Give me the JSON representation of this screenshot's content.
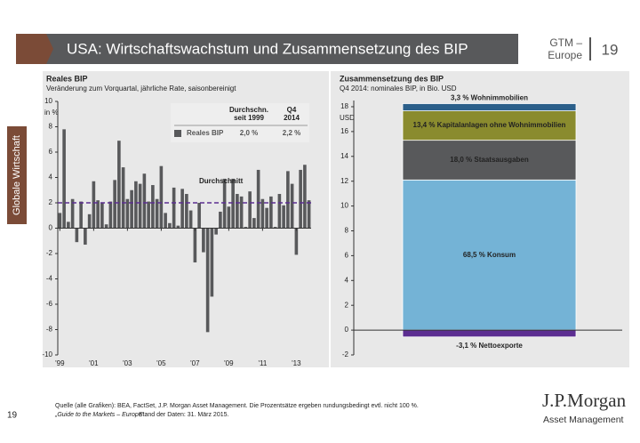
{
  "header": {
    "title": "USA: Wirtschaftswachstum und Zusammensetzung des BIP",
    "tag_line1": "GTM –",
    "tag_line2": "Europe",
    "page": "19"
  },
  "side_tab": "Globale Wirtschaft",
  "chart_data": [
    {
      "type": "bar",
      "title": "Reales BIP",
      "subtitle": "Veränderung zum Vorquartal, jährliche Rate, saisonbereinigt",
      "y_label": "in %",
      "categories": [
        "'99",
        null,
        null,
        null,
        null,
        null,
        null,
        null,
        "'01",
        null,
        null,
        null,
        null,
        null,
        null,
        null,
        "'03",
        null,
        null,
        null,
        null,
        null,
        null,
        null,
        "'05",
        null,
        null,
        null,
        null,
        null,
        null,
        null,
        "'07",
        null,
        null,
        null,
        null,
        null,
        null,
        null,
        "'09",
        null,
        null,
        null,
        null,
        null,
        null,
        null,
        "'11",
        null,
        null,
        null,
        null,
        null,
        null,
        null,
        "'13",
        null,
        null,
        null
      ],
      "series": [
        {
          "name": "Reales BIP",
          "color": "#58595b",
          "values": [
            1.2,
            7.8,
            0.5,
            2.3,
            -1.1,
            2.1,
            -1.3,
            1.1,
            3.7,
            2.2,
            2.0,
            0.3,
            2.1,
            3.8,
            6.9,
            4.8,
            2.3,
            3.0,
            3.7,
            3.5,
            4.3,
            2.1,
            3.4,
            2.3,
            4.9,
            1.2,
            0.4,
            3.2,
            0.2,
            3.1,
            2.7,
            1.4,
            -2.7,
            2.0,
            -1.9,
            -8.2,
            -5.4,
            -0.5,
            1.3,
            3.9,
            1.7,
            3.9,
            2.7,
            2.5,
            0.1,
            2.9,
            0.8,
            4.6,
            2.3,
            1.6,
            2.5,
            0.1,
            2.7,
            1.8,
            4.5,
            3.5,
            -2.1,
            4.6,
            5.0,
            2.2
          ]
        }
      ],
      "ylim": [
        -10,
        10
      ],
      "yticks": [
        -10,
        -8,
        -6,
        -4,
        -2,
        0,
        2,
        4,
        6,
        8,
        10
      ],
      "reference_line": {
        "label": "Durchschnitt",
        "value": 2,
        "color": "#5c2d91"
      },
      "legend_table": {
        "headers": [
          [
            "Durchschn.",
            "seit 1999"
          ],
          [
            "Q4",
            "2014"
          ]
        ],
        "row": [
          "2,0 %",
          "2,2 %"
        ]
      }
    },
    {
      "type": "stacked_bar",
      "title": "Zusammensetzung des BIP",
      "subtitle": "Q4 2014: nominales BIP, in Bio. USD",
      "y_label": "USD",
      "series": [
        {
          "name": "68,5 % Konsum",
          "color": "#74b3d6",
          "values": [
            12.1
          ]
        },
        {
          "name": "18,0 % Staatsausgaben",
          "color": "#58595b",
          "values": [
            3.2
          ]
        },
        {
          "name": "13,4 % Kapitalanlagen ohne Wohnimmobilien",
          "color": "#8a8b2e",
          "values": [
            2.37
          ]
        },
        {
          "name": "3,3 % Wohnimmobilien",
          "color": "#2b5f8a",
          "values": [
            0.58
          ]
        },
        {
          "name": "-3,1 % Nettoexporte",
          "color": "#5c2d91",
          "values": [
            -0.55
          ]
        }
      ],
      "ylim": [
        -2,
        18.5
      ],
      "yticks": [
        -2,
        0,
        2,
        4,
        6,
        8,
        10,
        12,
        14,
        16,
        18
      ]
    }
  ],
  "footer": {
    "source": "Quelle (alle Grafiken): BEA, FactSet, J.P. Morgan Asset Management. Die Prozentsätze ergeben rundungsbedingt evtl. nicht 100 %.",
    "note_italic": "„Guide to the Markets – Europe“",
    "note_rest": ". Stand der Daten: 31. März 2015.",
    "page": "19",
    "logo": "J.P.Morgan",
    "logo_sub": "Asset Management"
  }
}
